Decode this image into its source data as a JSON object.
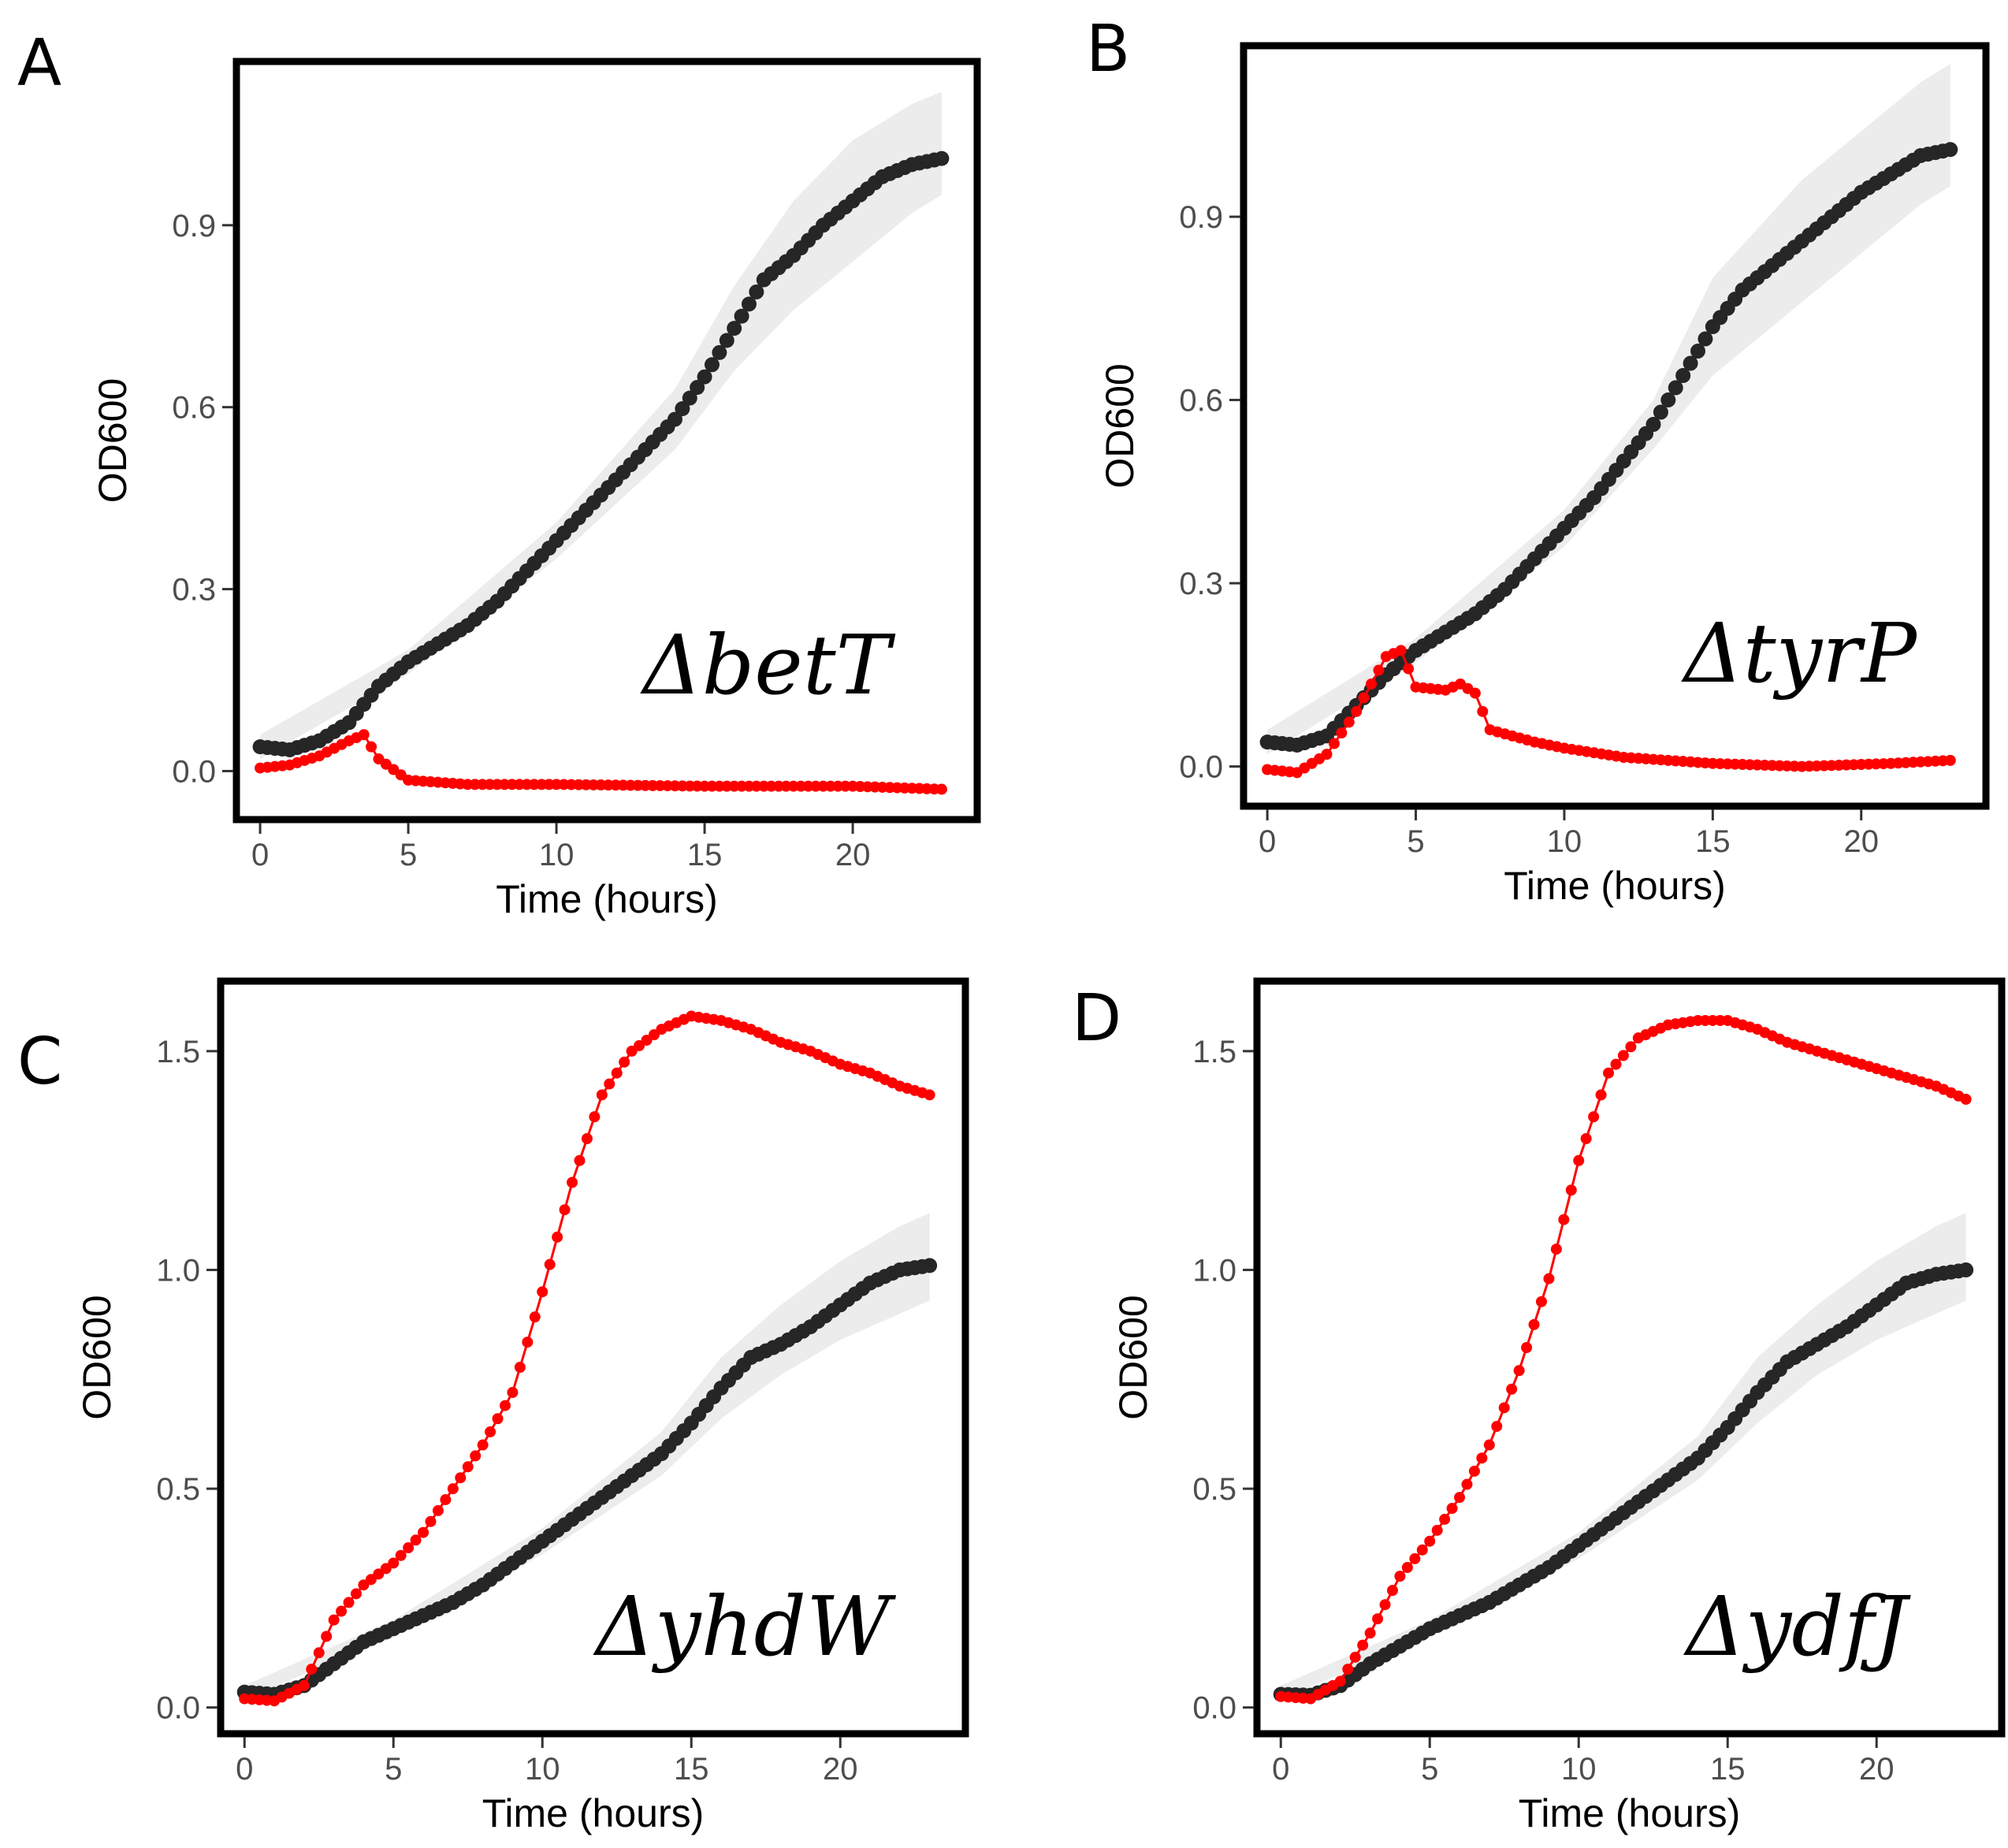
{
  "figure": {
    "x_axis_title": "Time (hours)",
    "y_axis_title": "OD600",
    "series_colors": {
      "control": "#262626",
      "mutant": "#ff0000",
      "band": "#ececec"
    }
  },
  "chart_data": [
    {
      "type": "line",
      "panel": "A",
      "label": "ΔbetT",
      "xlabel": "Time (hours)",
      "ylabel": "OD600",
      "xlim": [
        -0.8,
        24.2
      ],
      "ylim": [
        -0.08,
        1.17
      ],
      "xticks": [
        0,
        5,
        10,
        15,
        20
      ],
      "xtick_labels": [
        "0",
        "5",
        "10",
        "15",
        "20"
      ],
      "yticks": [
        0,
        0.3,
        0.6,
        0.9
      ],
      "ytick_labels": [
        "0.0",
        "0.3",
        "0.6",
        "0.9"
      ],
      "series": [
        {
          "role": "control",
          "color": "#262626",
          "points": [
            [
              0,
              0.04
            ],
            [
              1,
              0.035
            ],
            [
              2,
              0.05
            ],
            [
              3,
              0.08
            ],
            [
              4,
              0.14
            ],
            [
              5,
              0.18
            ],
            [
              6,
              0.21
            ],
            [
              7,
              0.24
            ],
            [
              8,
              0.28
            ],
            [
              9,
              0.33
            ],
            [
              10,
              0.38
            ],
            [
              11,
              0.43
            ],
            [
              12,
              0.48
            ],
            [
              13,
              0.53
            ],
            [
              14,
              0.58
            ],
            [
              15,
              0.65
            ],
            [
              16,
              0.73
            ],
            [
              17,
              0.81
            ],
            [
              18,
              0.85
            ],
            [
              19,
              0.9
            ],
            [
              20,
              0.94
            ],
            [
              21,
              0.98
            ],
            [
              22,
              1.0
            ],
            [
              23,
              1.01
            ]
          ],
          "band": [
            [
              0,
              0.02,
              0.06
            ],
            [
              5,
              0.16,
              0.2
            ],
            [
              10,
              0.35,
              0.41
            ],
            [
              14,
              0.53,
              0.63
            ],
            [
              16,
              0.66,
              0.8
            ],
            [
              18,
              0.76,
              0.94
            ],
            [
              20,
              0.84,
              1.04
            ],
            [
              22,
              0.92,
              1.1
            ],
            [
              23,
              0.95,
              1.12
            ]
          ]
        },
        {
          "role": "mutant",
          "color": "#ff0000",
          "points": [
            [
              0,
              0.005
            ],
            [
              1,
              0.01
            ],
            [
              2,
              0.025
            ],
            [
              3,
              0.05
            ],
            [
              3.5,
              0.06
            ],
            [
              4,
              0.02
            ],
            [
              5,
              -0.015
            ],
            [
              7,
              -0.022
            ],
            [
              10,
              -0.022
            ],
            [
              15,
              -0.025
            ],
            [
              20,
              -0.025
            ],
            [
              23,
              -0.03
            ]
          ]
        }
      ]
    },
    {
      "type": "line",
      "panel": "B",
      "label": "ΔtyrP",
      "xlabel": "Time (hours)",
      "ylabel": "OD600",
      "xlim": [
        -0.8,
        24.2
      ],
      "ylim": [
        -0.065,
        1.18
      ],
      "xticks": [
        0,
        5,
        10,
        15,
        20
      ],
      "xtick_labels": [
        "0",
        "5",
        "10",
        "15",
        "20"
      ],
      "yticks": [
        0,
        0.3,
        0.6,
        0.9
      ],
      "ytick_labels": [
        "0.0",
        "0.3",
        "0.6",
        "0.9"
      ],
      "series": [
        {
          "role": "control",
          "color": "#262626",
          "points": [
            [
              0,
              0.04
            ],
            [
              1,
              0.035
            ],
            [
              2,
              0.05
            ],
            [
              3,
              0.1
            ],
            [
              4,
              0.15
            ],
            [
              5,
              0.19
            ],
            [
              6,
              0.22
            ],
            [
              7,
              0.25
            ],
            [
              8,
              0.29
            ],
            [
              9,
              0.34
            ],
            [
              10,
              0.39
            ],
            [
              11,
              0.44
            ],
            [
              12,
              0.5
            ],
            [
              13,
              0.56
            ],
            [
              14,
              0.64
            ],
            [
              15,
              0.72
            ],
            [
              16,
              0.78
            ],
            [
              17,
              0.82
            ],
            [
              18,
              0.86
            ],
            [
              19,
              0.9
            ],
            [
              20,
              0.94
            ],
            [
              21,
              0.97
            ],
            [
              22,
              1.0
            ],
            [
              23,
              1.01
            ]
          ],
          "band": [
            [
              0,
              0.02,
              0.06
            ],
            [
              5,
              0.17,
              0.21
            ],
            [
              10,
              0.36,
              0.42
            ],
            [
              13,
              0.52,
              0.6
            ],
            [
              15,
              0.64,
              0.8
            ],
            [
              18,
              0.76,
              0.96
            ],
            [
              20,
              0.84,
              1.04
            ],
            [
              22,
              0.92,
              1.12
            ],
            [
              23,
              0.95,
              1.15
            ]
          ]
        },
        {
          "role": "mutant",
          "color": "#ff0000",
          "points": [
            [
              0,
              -0.005
            ],
            [
              1,
              -0.01
            ],
            [
              2,
              0.02
            ],
            [
              3,
              0.09
            ],
            [
              4,
              0.18
            ],
            [
              4.5,
              0.19
            ],
            [
              5,
              0.13
            ],
            [
              6,
              0.125
            ],
            [
              6.5,
              0.135
            ],
            [
              7,
              0.12
            ],
            [
              7.5,
              0.06
            ],
            [
              9,
              0.04
            ],
            [
              10,
              0.03
            ],
            [
              12,
              0.015
            ],
            [
              15,
              0.005
            ],
            [
              18,
              0.0
            ],
            [
              21,
              0.005
            ],
            [
              23,
              0.01
            ]
          ]
        }
      ]
    },
    {
      "type": "line",
      "panel": "C",
      "label": "ΔyhdW",
      "xlabel": "Time (hours)",
      "ylabel": "OD600",
      "xlim": [
        -0.8,
        24.2
      ],
      "ylim": [
        -0.06,
        1.66
      ],
      "xticks": [
        0,
        5,
        10,
        15,
        20
      ],
      "xtick_labels": [
        "0",
        "5",
        "10",
        "15",
        "20"
      ],
      "yticks": [
        0,
        0.5,
        1.0,
        1.5
      ],
      "ytick_labels": [
        "0.0",
        "0.5",
        "1.0",
        "1.5"
      ],
      "series": [
        {
          "role": "control",
          "color": "#262626",
          "points": [
            [
              0,
              0.035
            ],
            [
              1,
              0.03
            ],
            [
              2,
              0.05
            ],
            [
              3,
              0.1
            ],
            [
              4,
              0.15
            ],
            [
              5,
              0.18
            ],
            [
              6,
              0.21
            ],
            [
              7,
              0.24
            ],
            [
              8,
              0.28
            ],
            [
              9,
              0.33
            ],
            [
              10,
              0.38
            ],
            [
              11,
              0.43
            ],
            [
              12,
              0.48
            ],
            [
              13,
              0.53
            ],
            [
              14,
              0.58
            ],
            [
              15,
              0.65
            ],
            [
              16,
              0.73
            ],
            [
              17,
              0.8
            ],
            [
              18,
              0.83
            ],
            [
              19,
              0.87
            ],
            [
              20,
              0.92
            ],
            [
              21,
              0.97
            ],
            [
              22,
              1.0
            ],
            [
              23,
              1.01
            ]
          ],
          "band": [
            [
              0,
              0.02,
              0.05
            ],
            [
              5,
              0.16,
              0.2
            ],
            [
              10,
              0.35,
              0.41
            ],
            [
              14,
              0.53,
              0.63
            ],
            [
              16,
              0.66,
              0.8
            ],
            [
              18,
              0.76,
              0.92
            ],
            [
              20,
              0.84,
              1.02
            ],
            [
              22,
              0.9,
              1.1
            ],
            [
              23,
              0.93,
              1.13
            ]
          ]
        },
        {
          "role": "mutant",
          "color": "#ff0000",
          "points": [
            [
              0,
              0.02
            ],
            [
              1,
              0.015
            ],
            [
              2,
              0.05
            ],
            [
              3,
              0.2
            ],
            [
              4,
              0.28
            ],
            [
              5,
              0.33
            ],
            [
              6,
              0.4
            ],
            [
              7,
              0.5
            ],
            [
              8,
              0.6
            ],
            [
              9,
              0.72
            ],
            [
              10,
              0.95
            ],
            [
              11,
              1.2
            ],
            [
              12,
              1.4
            ],
            [
              13,
              1.5
            ],
            [
              14,
              1.55
            ],
            [
              15,
              1.58
            ],
            [
              16,
              1.57
            ],
            [
              17,
              1.55
            ],
            [
              18,
              1.52
            ],
            [
              19,
              1.5
            ],
            [
              20,
              1.47
            ],
            [
              21,
              1.45
            ],
            [
              22,
              1.42
            ],
            [
              23,
              1.4
            ]
          ]
        }
      ]
    },
    {
      "type": "line",
      "panel": "D",
      "label": "ΔydfJ",
      "xlabel": "Time (hours)",
      "ylabel": "OD600",
      "xlim": [
        -0.8,
        24.2
      ],
      "ylim": [
        -0.06,
        1.66
      ],
      "xticks": [
        0,
        5,
        10,
        15,
        20
      ],
      "xtick_labels": [
        "0",
        "5",
        "10",
        "15",
        "20"
      ],
      "yticks": [
        0,
        0.5,
        1.0,
        1.5
      ],
      "ytick_labels": [
        "0.0",
        "0.5",
        "1.0",
        "1.5"
      ],
      "series": [
        {
          "role": "control",
          "color": "#262626",
          "points": [
            [
              0,
              0.03
            ],
            [
              1,
              0.028
            ],
            [
              2,
              0.05
            ],
            [
              3,
              0.1
            ],
            [
              4,
              0.14
            ],
            [
              5,
              0.18
            ],
            [
              6,
              0.21
            ],
            [
              7,
              0.24
            ],
            [
              8,
              0.28
            ],
            [
              9,
              0.32
            ],
            [
              10,
              0.37
            ],
            [
              11,
              0.42
            ],
            [
              12,
              0.47
            ],
            [
              13,
              0.52
            ],
            [
              14,
              0.57
            ],
            [
              15,
              0.64
            ],
            [
              16,
              0.72
            ],
            [
              17,
              0.79
            ],
            [
              18,
              0.83
            ],
            [
              19,
              0.87
            ],
            [
              20,
              0.92
            ],
            [
              21,
              0.97
            ],
            [
              22,
              0.99
            ],
            [
              23,
              1.0
            ]
          ],
          "band": [
            [
              0,
              0.02,
              0.05
            ],
            [
              5,
              0.16,
              0.2
            ],
            [
              10,
              0.34,
              0.4
            ],
            [
              14,
              0.52,
              0.62
            ],
            [
              16,
              0.65,
              0.8
            ],
            [
              18,
              0.76,
              0.92
            ],
            [
              20,
              0.84,
              1.02
            ],
            [
              22,
              0.9,
              1.1
            ],
            [
              23,
              0.93,
              1.13
            ]
          ]
        },
        {
          "role": "mutant",
          "color": "#ff0000",
          "points": [
            [
              0,
              0.025
            ],
            [
              1,
              0.02
            ],
            [
              2,
              0.06
            ],
            [
              3,
              0.17
            ],
            [
              4,
              0.3
            ],
            [
              5,
              0.38
            ],
            [
              6,
              0.48
            ],
            [
              7,
              0.6
            ],
            [
              8,
              0.77
            ],
            [
              9,
              0.98
            ],
            [
              10,
              1.25
            ],
            [
              11,
              1.45
            ],
            [
              12,
              1.53
            ],
            [
              13,
              1.56
            ],
            [
              14,
              1.57
            ],
            [
              15,
              1.57
            ],
            [
              16,
              1.55
            ],
            [
              17,
              1.52
            ],
            [
              18,
              1.5
            ],
            [
              19,
              1.48
            ],
            [
              20,
              1.46
            ],
            [
              21,
              1.44
            ],
            [
              22,
              1.42
            ],
            [
              23,
              1.39
            ]
          ]
        }
      ]
    }
  ]
}
